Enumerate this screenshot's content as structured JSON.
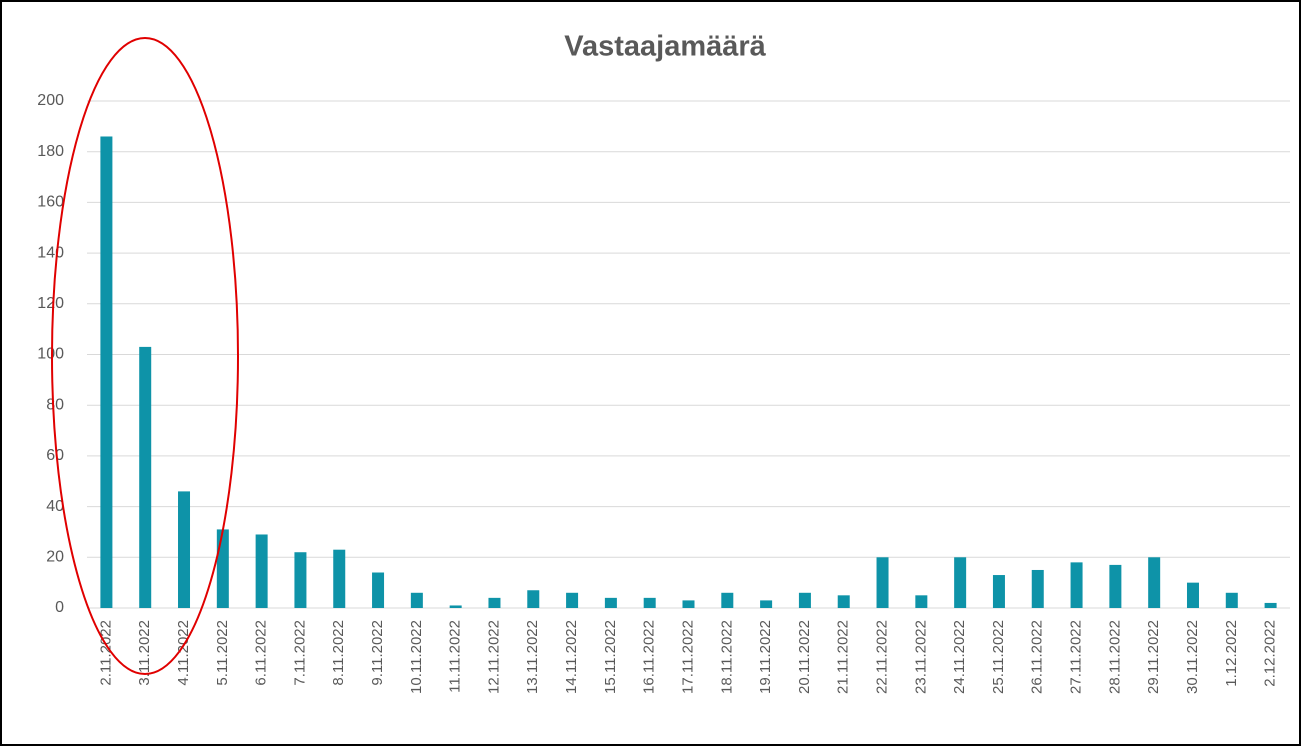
{
  "chart_data": {
    "type": "bar",
    "title": "Vastaajamäärä",
    "categories": [
      "2.11.2022",
      "3.11.2022",
      "4.11.2022",
      "5.11.2022",
      "6.11.2022",
      "7.11.2022",
      "8.11.2022",
      "9.11.2022",
      "10.11.2022",
      "11.11.2022",
      "12.11.2022",
      "13.11.2022",
      "14.11.2022",
      "15.11.2022",
      "16.11.2022",
      "17.11.2022",
      "18.11.2022",
      "19.11.2022",
      "20.11.2022",
      "21.11.2022",
      "22.11.2022",
      "23.11.2022",
      "24.11.2022",
      "25.11.2022",
      "26.11.2022",
      "27.11.2022",
      "28.11.2022",
      "29.11.2022",
      "30.11.2022",
      "1.12.2022",
      "2.12.2022"
    ],
    "values": [
      186,
      103,
      46,
      31,
      29,
      22,
      23,
      14,
      6,
      1,
      4,
      7,
      6,
      4,
      4,
      3,
      6,
      3,
      6,
      5,
      20,
      5,
      20,
      13,
      15,
      18,
      17,
      20,
      10,
      6,
      2
    ],
    "color": "#0e93a8",
    "ylim": [
      0,
      200
    ],
    "yticks": [
      0,
      20,
      40,
      60,
      80,
      100,
      120,
      140,
      160,
      180,
      200
    ],
    "grid": true
  }
}
